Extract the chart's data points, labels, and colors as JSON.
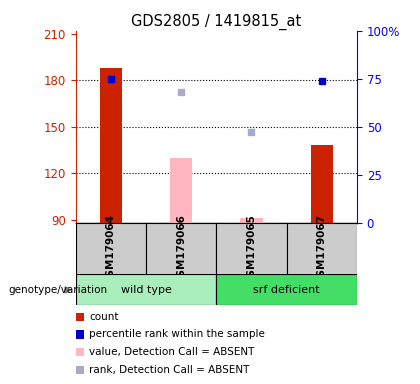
{
  "title": "GDS2805 / 1419815_at",
  "samples": [
    "GSM179064",
    "GSM179066",
    "GSM179065",
    "GSM179067"
  ],
  "bar_values": [
    188,
    null,
    null,
    138
  ],
  "bar_values_absent": [
    null,
    130,
    91,
    null
  ],
  "rank_values": [
    75,
    null,
    null,
    74
  ],
  "rank_values_absent": [
    null,
    68,
    47,
    null
  ],
  "ylim_left": [
    88,
    212
  ],
  "ylim_right": [
    0,
    100
  ],
  "yticks_left": [
    90,
    120,
    150,
    180,
    210
  ],
  "yticks_right": [
    0,
    25,
    50,
    75,
    100
  ],
  "ytick_labels_right": [
    "0",
    "25",
    "50",
    "75",
    "100%"
  ],
  "grid_lines": [
    120,
    150,
    180
  ],
  "colors": {
    "red_bar": "#CC2200",
    "blue_square": "#0000CC",
    "pink_bar": "#FFB6C1",
    "light_blue_square": "#AAAACC",
    "sample_bg": "#CCCCCC",
    "wt_bg": "#AAEEBB",
    "srf_bg": "#44DD66"
  },
  "legend_labels": [
    "count",
    "percentile rank within the sample",
    "value, Detection Call = ABSENT",
    "rank, Detection Call = ABSENT"
  ],
  "legend_colors": [
    "#CC2200",
    "#0000CC",
    "#FFB6C1",
    "#AAAACC"
  ],
  "genotype_label": "genotype/variation",
  "wt_label": "wild type",
  "srf_label": "srf deficient"
}
